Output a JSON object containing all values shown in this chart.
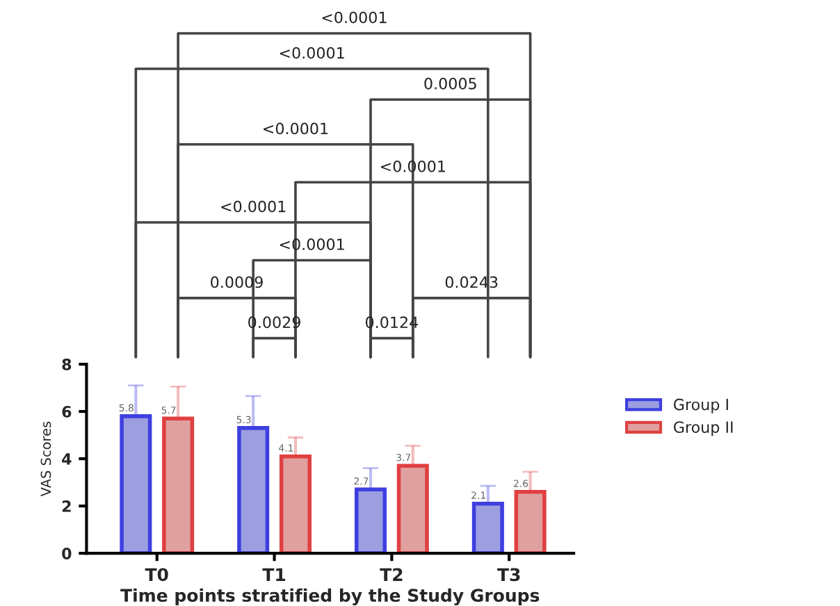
{
  "chart_data": {
    "type": "bar",
    "xlabel": "Time points stratified by the Study Groups",
    "ylabel": "VAS Scores",
    "categories": [
      "T0",
      "T1",
      "T2",
      "T3"
    ],
    "series": [
      {
        "name": "Group I",
        "color": "#9c9ee0",
        "values": [
          5.8,
          5.3,
          2.7,
          2.1
        ],
        "errors": [
          [
            5.8,
            7.1
          ],
          [
            5.3,
            6.65
          ],
          [
            2.7,
            3.6
          ],
          [
            2.1,
            2.85
          ]
        ]
      },
      {
        "name": "Group II",
        "color": "#e0a0a0",
        "values": [
          5.7,
          4.1,
          3.7,
          2.6
        ],
        "errors": [
          [
            5.7,
            7.05
          ],
          [
            4.1,
            4.9
          ],
          [
            3.7,
            4.55
          ],
          [
            2.6,
            3.45
          ]
        ]
      }
    ],
    "ylim": [
      0,
      8
    ],
    "yticks": [
      0,
      2,
      4,
      6,
      8
    ],
    "data_labels": true,
    "grid": false,
    "legend": "right",
    "annotations": [
      "<0.0001",
      "<0.0001",
      "0.0005",
      "<0.0001",
      "<0.0001",
      "<0.0001",
      "<0.0001",
      "0.0009",
      "0.0029",
      "0.0124",
      "0.0243"
    ]
  }
}
